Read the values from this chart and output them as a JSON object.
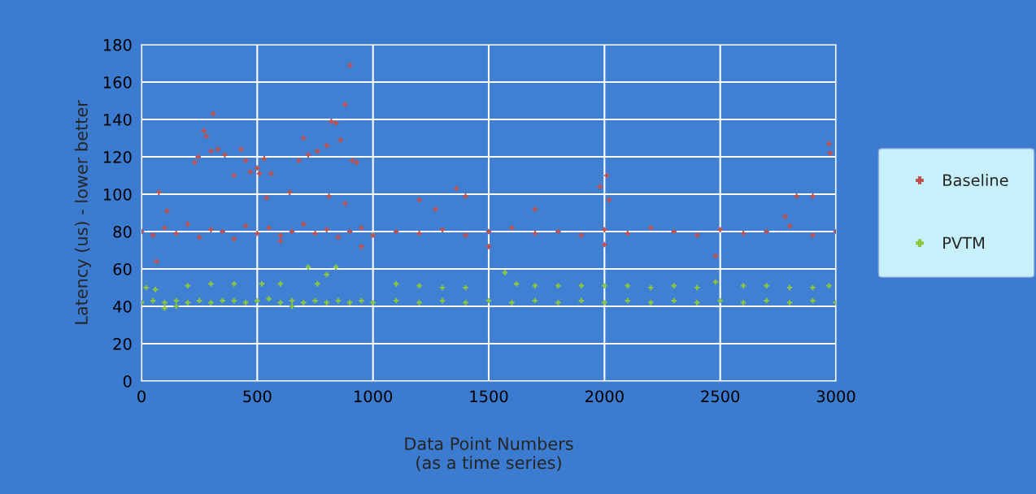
{
  "chart_data": {
    "type": "scatter",
    "xlabel": "Data Point Numbers\n(as a time series)",
    "ylabel": "Latency (us) - lower better",
    "xlim": [
      0,
      3000
    ],
    "xticks": [
      0,
      500,
      1000,
      1500,
      2000,
      2500,
      3000
    ],
    "ylim": [
      0,
      180
    ],
    "yticks": [
      0,
      20,
      40,
      60,
      80,
      100,
      120,
      140,
      160,
      180
    ],
    "grid": true,
    "legend": "right",
    "marker": "cross",
    "series": [
      {
        "name": "Baseline",
        "color": "#c0504d",
        "x": [
          0,
          50,
          100,
          150,
          200,
          250,
          300,
          350,
          400,
          450,
          500,
          550,
          600,
          650,
          700,
          750,
          800,
          850,
          900,
          950,
          1000,
          1100,
          1200,
          1300,
          1400,
          1500,
          1600,
          1700,
          1800,
          1900,
          2000,
          2100,
          2200,
          2300,
          2400,
          2500,
          2600,
          2700,
          2800,
          2900,
          3000,
          65,
          75,
          110,
          230,
          245,
          270,
          280,
          310,
          330,
          300,
          360,
          400,
          430,
          450,
          470,
          500,
          510,
          530,
          540,
          560,
          600,
          640,
          680,
          700,
          720,
          760,
          800,
          820,
          840,
          860,
          880,
          900,
          910,
          930,
          810,
          880,
          950,
          1200,
          1270,
          1360,
          1400,
          1500,
          1700,
          1980,
          2000,
          2010,
          2020,
          2480,
          2780,
          2830,
          2900,
          2970,
          2975
        ],
        "values": [
          80,
          78,
          82,
          79,
          84,
          77,
          81,
          80,
          76,
          83,
          79,
          82,
          78,
          80,
          84,
          79,
          81,
          77,
          80,
          82,
          78,
          80,
          79,
          81,
          78,
          80,
          82,
          79,
          80,
          78,
          81,
          79,
          82,
          80,
          78,
          81,
          79,
          80,
          83,
          78,
          80,
          64,
          101,
          91,
          117,
          120,
          134,
          131,
          143,
          124,
          123,
          121,
          110,
          124,
          118,
          112,
          114,
          111,
          119,
          98,
          111,
          75,
          101,
          118,
          130,
          121,
          123,
          126,
          139,
          138,
          129,
          148,
          169,
          118,
          117,
          99,
          95,
          72,
          97,
          92,
          103,
          99,
          72,
          92,
          104,
          73,
          110,
          97,
          67,
          88,
          99,
          99,
          127,
          122
        ]
      },
      {
        "name": "PVTM",
        "color": "#8cc63f",
        "x": [
          0,
          50,
          100,
          150,
          200,
          250,
          300,
          350,
          400,
          450,
          500,
          550,
          600,
          650,
          700,
          750,
          800,
          850,
          900,
          950,
          1000,
          1100,
          1200,
          1300,
          1400,
          1500,
          1600,
          1700,
          1800,
          1900,
          2000,
          2100,
          2200,
          2300,
          2400,
          2500,
          2600,
          2700,
          2800,
          2900,
          3000,
          20,
          60,
          200,
          300,
          400,
          520,
          600,
          720,
          760,
          800,
          840,
          1100,
          1200,
          1300,
          1400,
          1570,
          1620,
          1700,
          1800,
          1900,
          2000,
          2100,
          2200,
          2300,
          2400,
          2480,
          2600,
          2700,
          2800,
          2900,
          2970,
          100,
          150,
          650
        ],
        "values": [
          42,
          43,
          42,
          43,
          42,
          43,
          42,
          43,
          43,
          42,
          43,
          44,
          42,
          43,
          42,
          43,
          42,
          43,
          42,
          43,
          42,
          43,
          42,
          43,
          42,
          43,
          42,
          43,
          42,
          43,
          42,
          43,
          42,
          43,
          42,
          43,
          42,
          43,
          42,
          43,
          42,
          50,
          49,
          51,
          52,
          52,
          52,
          52,
          61,
          52,
          57,
          61,
          52,
          51,
          50,
          50,
          58,
          52,
          51,
          51,
          51,
          51,
          51,
          50,
          51,
          50,
          53,
          51,
          51,
          50,
          50,
          51,
          39,
          40,
          40
        ]
      }
    ]
  }
}
